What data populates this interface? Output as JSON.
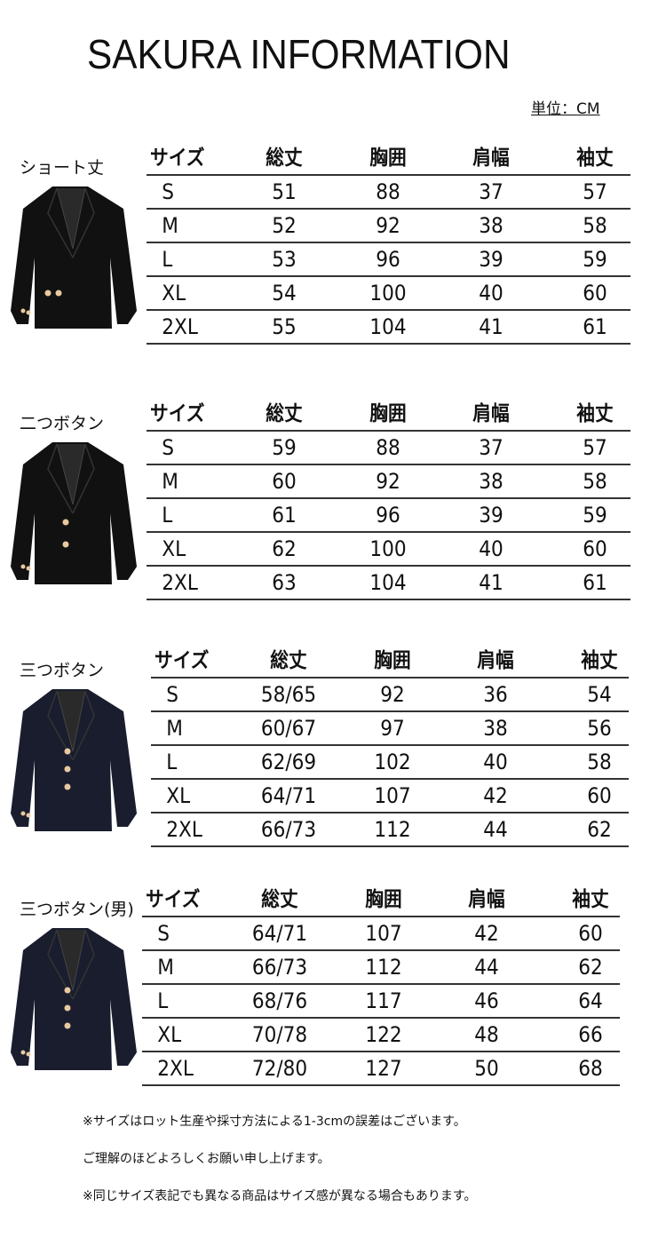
{
  "title": "SAKURA INFORMATION",
  "unit": "単位：CM",
  "headers": [
    "サイズ",
    "総丈",
    "胸囲",
    "肩幅",
    "袖丈"
  ],
  "sections": [
    {
      "label": "ショート丈",
      "rows": [
        [
          "S",
          "51",
          "88",
          "37",
          "57"
        ],
        [
          "M",
          "52",
          "92",
          "38",
          "58"
        ],
        [
          "L",
          "53",
          "96",
          "39",
          "59"
        ],
        [
          "XL",
          "54",
          "100",
          "40",
          "60"
        ],
        [
          "2XL",
          "55",
          "104",
          "41",
          "61"
        ]
      ]
    },
    {
      "label": "二つボタン",
      "rows": [
        [
          "S",
          "59",
          "88",
          "37",
          "57"
        ],
        [
          "M",
          "60",
          "92",
          "38",
          "58"
        ],
        [
          "L",
          "61",
          "96",
          "39",
          "59"
        ],
        [
          "XL",
          "62",
          "100",
          "40",
          "60"
        ],
        [
          "2XL",
          "63",
          "104",
          "41",
          "61"
        ]
      ]
    },
    {
      "label": "三つボタン",
      "rows": [
        [
          "S",
          "58/65",
          "92",
          "36",
          "54"
        ],
        [
          "M",
          "60/67",
          "97",
          "38",
          "56"
        ],
        [
          "L",
          "62/69",
          "102",
          "40",
          "58"
        ],
        [
          "XL",
          "64/71",
          "107",
          "42",
          "60"
        ],
        [
          "2XL",
          "66/73",
          "112",
          "44",
          "62"
        ]
      ]
    },
    {
      "label": "三つボタン(男)",
      "rows": [
        [
          "S",
          "64/71",
          "107",
          "42",
          "60"
        ],
        [
          "M",
          "66/73",
          "112",
          "44",
          "62"
        ],
        [
          "L",
          "68/76",
          "117",
          "46",
          "64"
        ],
        [
          "XL",
          "70/78",
          "122",
          "48",
          "66"
        ],
        [
          "2XL",
          "72/80",
          "127",
          "50",
          "68"
        ]
      ]
    }
  ],
  "notes": [
    "※サイズはロット生産や採寸方法による1-3cmの誤差はございます。",
    "ご理解のほどよろしくお願い申し上げます。",
    "※同じサイズ表記でも異なる商品はサイズ感が異なる場合もあります。"
  ],
  "colors": {
    "jacket_black": "#111111",
    "jacket_navy": "#1a1d2e",
    "button_gold": "#e8c9a0"
  }
}
